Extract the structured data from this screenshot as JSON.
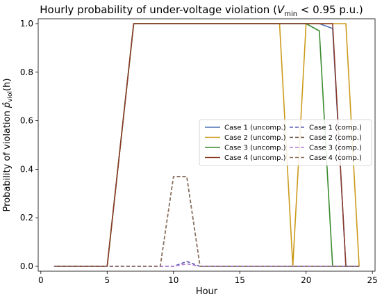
{
  "chart_data": {
    "type": "line",
    "title": "Hourly probability of under-voltage violation (",
    "title_math_main": "V",
    "title_math_sub": "min",
    "title_math_tail": " < 0.95 p.u.)",
    "xlabel": "Hour",
    "ylabel_prefix": "Probability of violation ",
    "ylabel_math": "p̂",
    "ylabel_math_sub": "viol",
    "ylabel_suffix": "(h)",
    "xlim": [
      -0.2,
      25.2
    ],
    "ylim": [
      -0.02,
      1.02
    ],
    "xticks": [
      0,
      5,
      10,
      15,
      20,
      25
    ],
    "yticks": [
      0.0,
      0.2,
      0.4,
      0.6,
      0.8,
      1.0
    ],
    "xtick_labels": [
      "0",
      "5",
      "10",
      "15",
      "20",
      "25"
    ],
    "ytick_labels": [
      "0.0",
      "0.2",
      "0.4",
      "0.6",
      "0.8",
      "1.0"
    ],
    "grid": false,
    "legend_placement": "center-right",
    "legend_columns": 2,
    "x": [
      1,
      2,
      3,
      4,
      5,
      6,
      7,
      8,
      9,
      10,
      11,
      12,
      13,
      14,
      15,
      16,
      17,
      18,
      19,
      20,
      21,
      22,
      23,
      24
    ],
    "series": [
      {
        "name": "Case 1 (uncomp.)",
        "color": "#4c72b0",
        "dash": false,
        "values": [
          0,
          0,
          0,
          0,
          0,
          0.5,
          1,
          1,
          1,
          1,
          1,
          1,
          1,
          1,
          1,
          1,
          1,
          1,
          1,
          1,
          1,
          0.98,
          0,
          0
        ]
      },
      {
        "name": "Case 2 (uncomp.)",
        "color": "#cc9a1a",
        "dash": false,
        "values": [
          0,
          0,
          0,
          0,
          0,
          0.5,
          1,
          1,
          1,
          1,
          1,
          1,
          1,
          1,
          1,
          1,
          1,
          1,
          0,
          1,
          1,
          1,
          1,
          0
        ]
      },
      {
        "name": "Case 3 (uncomp.)",
        "color": "#3a8a2e",
        "dash": false,
        "values": [
          0,
          0,
          0,
          0,
          0,
          0.5,
          1,
          1,
          1,
          1,
          1,
          1,
          1,
          1,
          1,
          1,
          1,
          1,
          1,
          1,
          0.97,
          0,
          0,
          0
        ]
      },
      {
        "name": "Case 4 (uncomp.)",
        "color": "#8b3a2b",
        "dash": false,
        "values": [
          0,
          0,
          0,
          0,
          0,
          0.5,
          1,
          1,
          1,
          1,
          1,
          1,
          1,
          1,
          1,
          1,
          1,
          1,
          1,
          1,
          1,
          1,
          0,
          0
        ]
      },
      {
        "name": "Case 1 (comp.)",
        "color": "#5c5bb5",
        "dash": true,
        "values": [
          0,
          0,
          0,
          0,
          0,
          0,
          0,
          0,
          0,
          0,
          0.02,
          0,
          0,
          0,
          0,
          0,
          0,
          0,
          0,
          0,
          0,
          0,
          0,
          0
        ]
      },
      {
        "name": "Case 2 (comp.)",
        "color": "#5a4637",
        "dash": true,
        "values": [
          0,
          0,
          0,
          0,
          0,
          0,
          0,
          0,
          0,
          0.37,
          0.37,
          0,
          0,
          0,
          0,
          0,
          0,
          0,
          0,
          0,
          0,
          0,
          0,
          0
        ]
      },
      {
        "name": "Case 3 (comp.)",
        "color": "#b27ad0",
        "dash": true,
        "values": [
          0,
          0,
          0,
          0,
          0,
          0,
          0,
          0,
          0,
          0,
          0.01,
          0,
          0,
          0,
          0,
          0,
          0,
          0,
          0,
          0,
          0,
          0,
          0,
          0
        ]
      },
      {
        "name": "Case 4 (comp.)",
        "color": "#8c7260",
        "dash": true,
        "values": [
          0,
          0,
          0,
          0,
          0,
          0,
          0,
          0,
          0,
          0.37,
          0.37,
          0,
          0,
          0,
          0,
          0,
          0,
          0,
          0,
          0,
          0,
          0,
          0,
          0
        ]
      }
    ]
  }
}
